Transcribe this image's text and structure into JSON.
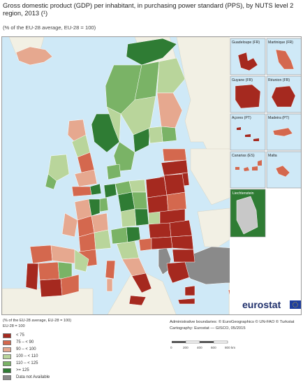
{
  "header": {
    "title": "Gross domestic product (GDP) per inhabitant, in purchasing power standard (PPS), by NUTS level 2 region, 2013 (¹)",
    "subtitle": "(% of the EU-28 average, EU-28 = 100)"
  },
  "insets": [
    {
      "label": "Guadeloupe (FR)"
    },
    {
      "label": "Martinique (FR)"
    },
    {
      "label": "Guyane (FR)"
    },
    {
      "label": "Réunion (FR)"
    },
    {
      "label": "Açores (PT)"
    },
    {
      "label": "Madeira (PT)"
    },
    {
      "label": "Canarias (ES)"
    },
    {
      "label": "Malta"
    },
    {
      "label": "Liechtenstein"
    }
  ],
  "legend": {
    "note": "(% of the EU-28 average, EU-28 = 100)",
    "base": "EU-28 = 100",
    "items": [
      {
        "label": "< 75",
        "color": "#a5291f"
      },
      {
        "label": "75 – < 90",
        "color": "#d4684e"
      },
      {
        "label": "90 – < 100",
        "color": "#e6a88f"
      },
      {
        "label": "100 – < 110",
        "color": "#b9d59b"
      },
      {
        "label": "110 – < 125",
        "color": "#7ab366"
      },
      {
        "label": ">= 125",
        "color": "#2f7c34"
      },
      {
        "label": "Data not Available",
        "color": "#8a8a8a"
      }
    ]
  },
  "credits": {
    "line1": "Administrative boundaries: © EuroGeographics © UN-FAO © Turkstat",
    "line2": "Cartography: Eurostat — GISCO, 05/2015"
  },
  "scale": {
    "ticks": [
      "0",
      "200",
      "400",
      "600",
      "800 km"
    ]
  },
  "logo": {
    "text": "eurostat"
  },
  "colors": {
    "sea": "#cfe9f7",
    "non_eu": "#f2f0e4",
    "not_available": "#8a8a8a",
    "border": "#ffffff",
    "inset_border": "#8a8a8a"
  }
}
